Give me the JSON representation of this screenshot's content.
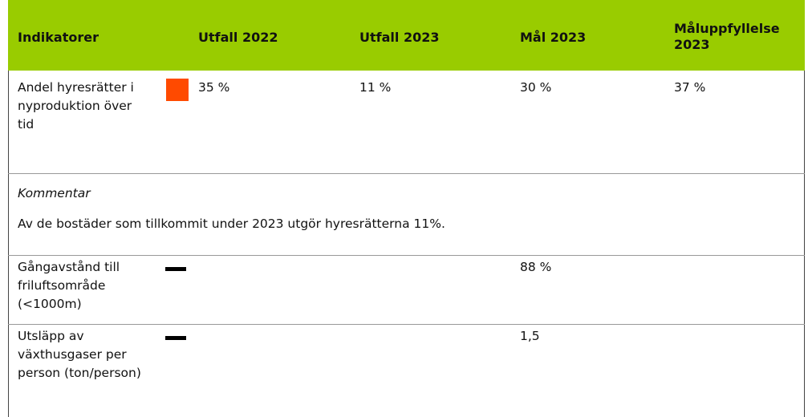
{
  "table": {
    "header": [
      "Indikatorer",
      "Utfall 2022",
      "Utfall 2023",
      "Mål 2023",
      "Måluppfyllelse 2023"
    ],
    "rows": [
      {
        "indicator": "Andel hyresrätter i nyproduktion över tid",
        "utfall_2022": "35 %",
        "utfall_2023": "11 %",
        "mal_2023": "30 %",
        "maluppfyllelse_2023": "37 %",
        "comment_label": "Kommentar",
        "comment": "Av de bostäder som tillkommit under 2023 utgör hyresrätterna 11%."
      },
      {
        "indicator": "Gångavstånd till friluftsområde (<1000m)",
        "mal_2023": "88 %"
      },
      {
        "indicator": "Utsläpp av växthusgaser per person (ton/person)",
        "mal_2023": "1,5"
      }
    ]
  }
}
